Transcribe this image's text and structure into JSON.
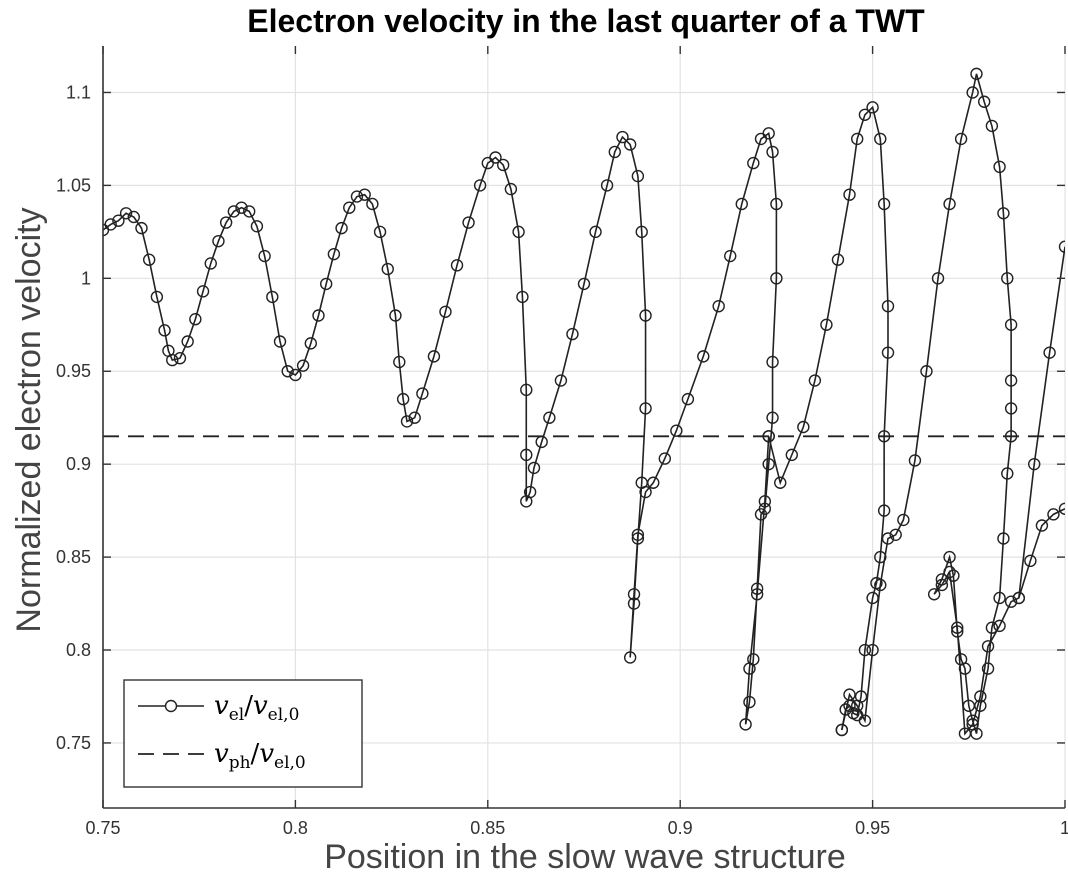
{
  "chart_data": {
    "type": "line",
    "title": "Electron velocity in the last quarter of a TWT",
    "xlabel": "Position in the slow wave structure",
    "ylabel": "Normalized electron velocity",
    "xlim": [
      0.75,
      1.0
    ],
    "ylim": [
      0.715,
      1.125
    ],
    "x_ticks": [
      0.75,
      0.8,
      0.85,
      0.9,
      0.95,
      1.0
    ],
    "x_tick_labels": [
      "0.75",
      "0.8",
      "0.85",
      "0.9",
      "0.95",
      "1"
    ],
    "y_ticks": [
      0.75,
      0.8,
      0.85,
      0.9,
      0.95,
      1.0,
      1.05,
      1.1
    ],
    "y_tick_labels": [
      "0.75",
      "0.8",
      "0.85",
      "0.9",
      "0.95",
      "1",
      "1.05",
      "1.1"
    ],
    "grid": true,
    "legend_position": "bottom-left",
    "series": [
      {
        "name_main": "v",
        "name_sub": "el",
        "name_main2": "v",
        "name_sub2": "el,0",
        "style": "solid-circle-markers",
        "color": "#222222",
        "points": [
          [
            0.75,
            1.026
          ],
          [
            0.752,
            1.029
          ],
          [
            0.754,
            1.031
          ],
          [
            0.756,
            1.035
          ],
          [
            0.758,
            1.033
          ],
          [
            0.76,
            1.027
          ],
          [
            0.762,
            1.01
          ],
          [
            0.764,
            0.99
          ],
          [
            0.766,
            0.972
          ],
          [
            0.767,
            0.961
          ],
          [
            0.768,
            0.956
          ],
          [
            0.77,
            0.957
          ],
          [
            0.772,
            0.966
          ],
          [
            0.774,
            0.978
          ],
          [
            0.776,
            0.993
          ],
          [
            0.778,
            1.008
          ],
          [
            0.78,
            1.02
          ],
          [
            0.782,
            1.03
          ],
          [
            0.784,
            1.036
          ],
          [
            0.786,
            1.038
          ],
          [
            0.788,
            1.036
          ],
          [
            0.79,
            1.028
          ],
          [
            0.792,
            1.012
          ],
          [
            0.794,
            0.99
          ],
          [
            0.796,
            0.966
          ],
          [
            0.798,
            0.95
          ],
          [
            0.8,
            0.948
          ],
          [
            0.802,
            0.953
          ],
          [
            0.804,
            0.965
          ],
          [
            0.806,
            0.98
          ],
          [
            0.808,
            0.997
          ],
          [
            0.81,
            1.013
          ],
          [
            0.812,
            1.027
          ],
          [
            0.814,
            1.038
          ],
          [
            0.816,
            1.044
          ],
          [
            0.818,
            1.045
          ],
          [
            0.82,
            1.04
          ],
          [
            0.822,
            1.025
          ],
          [
            0.824,
            1.005
          ],
          [
            0.826,
            0.98
          ],
          [
            0.827,
            0.955
          ],
          [
            0.828,
            0.935
          ],
          [
            0.829,
            0.923
          ],
          [
            0.831,
            0.925
          ],
          [
            0.833,
            0.938
          ],
          [
            0.836,
            0.958
          ],
          [
            0.839,
            0.982
          ],
          [
            0.842,
            1.007
          ],
          [
            0.845,
            1.03
          ],
          [
            0.848,
            1.05
          ],
          [
            0.85,
            1.062
          ],
          [
            0.852,
            1.065
          ],
          [
            0.854,
            1.061
          ],
          [
            0.856,
            1.048
          ],
          [
            0.858,
            1.025
          ],
          [
            0.859,
            0.99
          ],
          [
            0.86,
            0.94
          ],
          [
            0.86,
            0.905
          ],
          [
            0.86,
            0.88
          ],
          [
            0.861,
            0.885
          ],
          [
            0.862,
            0.898
          ],
          [
            0.864,
            0.912
          ],
          [
            0.866,
            0.925
          ],
          [
            0.869,
            0.945
          ],
          [
            0.872,
            0.97
          ],
          [
            0.875,
            0.997
          ],
          [
            0.878,
            1.025
          ],
          [
            0.881,
            1.05
          ],
          [
            0.883,
            1.068
          ],
          [
            0.885,
            1.076
          ],
          [
            0.887,
            1.072
          ],
          [
            0.889,
            1.055
          ],
          [
            0.89,
            1.025
          ],
          [
            0.891,
            0.98
          ],
          [
            0.891,
            0.93
          ],
          [
            0.89,
            0.89
          ],
          [
            0.889,
            0.86
          ],
          [
            0.888,
            0.825
          ],
          [
            0.887,
            0.796
          ],
          [
            0.888,
            0.83
          ],
          [
            0.889,
            0.862
          ],
          [
            0.891,
            0.885
          ],
          [
            0.893,
            0.89
          ],
          [
            0.896,
            0.903
          ],
          [
            0.899,
            0.918
          ],
          [
            0.902,
            0.935
          ],
          [
            0.906,
            0.958
          ],
          [
            0.91,
            0.985
          ],
          [
            0.913,
            1.012
          ],
          [
            0.916,
            1.04
          ],
          [
            0.919,
            1.062
          ],
          [
            0.921,
            1.075
          ],
          [
            0.923,
            1.078
          ],
          [
            0.924,
            1.068
          ],
          [
            0.925,
            1.04
          ],
          [
            0.925,
            1.0
          ],
          [
            0.924,
            0.955
          ],
          [
            0.924,
            0.925
          ],
          [
            0.923,
            0.9
          ],
          [
            0.922,
            0.876
          ],
          [
            0.921,
            0.873
          ],
          [
            0.92,
            0.833
          ],
          [
            0.919,
            0.795
          ],
          [
            0.918,
            0.772
          ],
          [
            0.917,
            0.76
          ],
          [
            0.918,
            0.79
          ],
          [
            0.92,
            0.83
          ],
          [
            0.922,
            0.88
          ],
          [
            0.923,
            0.915
          ]
        ]
      },
      {
        "name_main": "v",
        "name_sub": "ph",
        "name_main2": "v",
        "name_sub2": "el,0",
        "style": "dashed",
        "color": "#222222",
        "points": [
          [
            0.75,
            0.915
          ],
          [
            1.0,
            0.915
          ]
        ]
      }
    ],
    "extra_segments": [
      [
        [
          0.923,
          0.915
        ],
        [
          0.926,
          0.89
        ],
        [
          0.929,
          0.905
        ],
        [
          0.932,
          0.92
        ],
        [
          0.935,
          0.945
        ],
        [
          0.938,
          0.975
        ],
        [
          0.941,
          1.01
        ],
        [
          0.944,
          1.045
        ],
        [
          0.946,
          1.075
        ],
        [
          0.948,
          1.088
        ],
        [
          0.95,
          1.092
        ],
        [
          0.952,
          1.075
        ],
        [
          0.953,
          1.04
        ],
        [
          0.954,
          0.985
        ],
        [
          0.954,
          0.96
        ],
        [
          0.953,
          0.915
        ],
        [
          0.953,
          0.875
        ],
        [
          0.952,
          0.85
        ],
        [
          0.951,
          0.836
        ],
        [
          0.95,
          0.828
        ],
        [
          0.948,
          0.8
        ],
        [
          0.947,
          0.775
        ],
        [
          0.946,
          0.765
        ],
        [
          0.945,
          0.766
        ],
        [
          0.944,
          0.77
        ],
        [
          0.943,
          0.768
        ],
        [
          0.942,
          0.757
        ]
      ],
      [
        [
          0.942,
          0.757
        ],
        [
          0.944,
          0.776
        ],
        [
          0.946,
          0.77
        ],
        [
          0.948,
          0.762
        ],
        [
          0.95,
          0.8
        ],
        [
          0.952,
          0.835
        ],
        [
          0.954,
          0.86
        ],
        [
          0.956,
          0.862
        ],
        [
          0.958,
          0.87
        ],
        [
          0.961,
          0.902
        ],
        [
          0.964,
          0.95
        ],
        [
          0.967,
          1.0
        ],
        [
          0.97,
          1.04
        ],
        [
          0.973,
          1.075
        ],
        [
          0.976,
          1.1
        ],
        [
          0.977,
          1.11
        ],
        [
          0.979,
          1.095
        ],
        [
          0.981,
          1.082
        ],
        [
          0.983,
          1.06
        ],
        [
          0.984,
          1.035
        ],
        [
          0.985,
          1.0
        ],
        [
          0.986,
          0.975
        ],
        [
          0.986,
          0.945
        ],
        [
          0.986,
          0.93
        ],
        [
          0.986,
          0.915
        ],
        [
          0.985,
          0.895
        ],
        [
          0.984,
          0.86
        ],
        [
          0.983,
          0.828
        ],
        [
          0.981,
          0.812
        ],
        [
          0.98,
          0.79
        ],
        [
          0.978,
          0.77
        ],
        [
          0.977,
          0.755
        ],
        [
          0.976,
          0.762
        ],
        [
          0.975,
          0.77
        ],
        [
          0.974,
          0.79
        ],
        [
          0.973,
          0.795
        ],
        [
          0.972,
          0.81
        ],
        [
          0.971,
          0.84
        ],
        [
          0.97,
          0.85
        ],
        [
          0.968,
          0.838
        ],
        [
          0.966,
          0.83
        ],
        [
          0.968,
          0.835
        ],
        [
          0.97,
          0.842
        ],
        [
          0.972,
          0.812
        ],
        [
          0.974,
          0.755
        ],
        [
          0.976,
          0.76
        ],
        [
          0.978,
          0.775
        ],
        [
          0.98,
          0.802
        ],
        [
          0.983,
          0.813
        ],
        [
          0.986,
          0.826
        ],
        [
          0.988,
          0.828
        ],
        [
          0.991,
          0.848
        ],
        [
          0.994,
          0.867
        ],
        [
          0.997,
          0.873
        ],
        [
          1.0,
          0.876
        ]
      ],
      [
        [
          0.988,
          0.828
        ],
        [
          0.992,
          0.9
        ],
        [
          0.996,
          0.96
        ],
        [
          1.0,
          1.017
        ]
      ]
    ]
  }
}
